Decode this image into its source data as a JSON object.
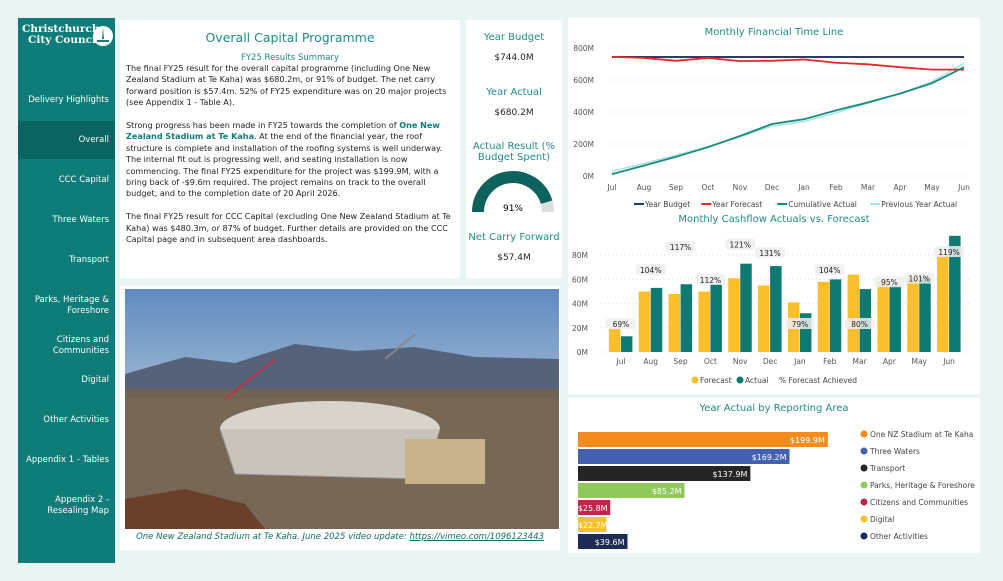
{
  "brand": {
    "line1": "Christchurch",
    "line2": "City Council"
  },
  "nav": [
    {
      "label": "Delivery Highlights"
    },
    {
      "label": "Overall",
      "active": true
    },
    {
      "label": "CCC Capital"
    },
    {
      "label": "Three Waters"
    },
    {
      "label": "Transport"
    },
    {
      "label": "Parks, Heritage & Foreshore"
    },
    {
      "label": "Citizens and Communities"
    },
    {
      "label": "Digital"
    },
    {
      "label": "Other Activities"
    },
    {
      "label": "Appendix 1 - Tables"
    },
    {
      "label": "Appendix 2 - Resealing Map"
    }
  ],
  "main": {
    "title": "Overall Capital Programme",
    "subtitle": "FY25 Results Summary",
    "p1": "The final FY25 result for the overall capital programme (including One New Zealand Stadium at Te Kaha) was $680.2m, or 91% of budget.  The net carry forward position is $57.4m.  52% of FY25 expenditure was on 20 major projects (see Appendix 1 - Table A).",
    "p2_pre": "Strong progress has been made in FY25 towards the completion of ",
    "p2_bold": "One New Zealand Stadium at Te Kaha",
    "p2_post": ".  At the end of the financial year, the roof structure is complete and installation of the roofing systems is well underway.  The internal fit out is progressing well, and seating installation is now commencing.  The final FY25 expenditure for the project was $199.9M, with a bring back of -$9.6m required.  The project remains on track to the overall budget, and to the completion date of 20 April 2026.",
    "p3": "The final FY25 result for CCC Capital (excluding One New Zealand Stadium at Te Kaha) was $480.3m, or 87% of budget.  Further details are provided on the CCC Capital page and in subsequent area dashboards."
  },
  "kpis": {
    "year_budget_label": "Year Budget",
    "year_budget": "$744.0M",
    "year_actual_label": "Year Actual",
    "year_actual": "$680.2M",
    "result_label": "Actual Result (% Budget Spent)",
    "result": "91%",
    "result_fraction": 0.91,
    "carry_label": "Net Carry Forward",
    "carry": "$57.4M"
  },
  "photo": {
    "caption": "One New Zealand Stadium at Te Kaha.  June 2025 video update: ",
    "link": "https://vimeo.com/1096123443"
  },
  "colors": {
    "teal": "#0e7c78",
    "budget": "#2f3a5c",
    "forecast_line": "#e8262b",
    "cumulative": "#1a8a80",
    "previous": "#a8e3dc",
    "bar_forecast": "#fbbf2b",
    "bar_actual": "#0e7a72"
  },
  "chart_data": [
    {
      "type": "line",
      "title": "Monthly Financial Time Line",
      "categories": [
        "Jul",
        "Aug",
        "Sep",
        "Oct",
        "Nov",
        "Dec",
        "Jan",
        "Feb",
        "Mar",
        "Apr",
        "May",
        "Jun"
      ],
      "ylim": [
        0,
        800
      ],
      "yticks": [
        "0M",
        "200M",
        "400M",
        "600M",
        "800M"
      ],
      "grid": true,
      "legend": "bottom",
      "series": [
        {
          "name": "Year Budget",
          "values": [
            744,
            744,
            744,
            744,
            744,
            744,
            744,
            744,
            744,
            744,
            744,
            744
          ]
        },
        {
          "name": "Year Forecast",
          "values": [
            745,
            738,
            720,
            738,
            718,
            720,
            728,
            708,
            698,
            680,
            665,
            665
          ]
        },
        {
          "name": "Cumulative Actual",
          "values": [
            12,
            65,
            120,
            180,
            250,
            325,
            355,
            410,
            460,
            515,
            580,
            680
          ]
        },
        {
          "name": "Previous Year Actual",
          "values": [
            30,
            78,
            130,
            185,
            245,
            312,
            340,
            395,
            455,
            515,
            590,
            705
          ]
        }
      ]
    },
    {
      "type": "bar",
      "title": "Monthly Cashflow Actuals vs. Forecast",
      "categories": [
        "Jul",
        "Aug",
        "Sep",
        "Oct",
        "Nov",
        "Dec",
        "Jan",
        "Feb",
        "Mar",
        "Apr",
        "May",
        "Jun"
      ],
      "ylim": [
        0,
        100
      ],
      "yticks": [
        "0M",
        "20M",
        "40M",
        "60M",
        "80M"
      ],
      "legend": "bottom",
      "legend_extra": "% Forecast Achieved",
      "series": [
        {
          "name": "Forecast",
          "values": [
            19,
            50,
            48,
            50,
            61,
            55,
            41,
            58,
            64,
            58,
            61,
            81
          ]
        },
        {
          "name": "Actual",
          "values": [
            13,
            53,
            56,
            56,
            73,
            71,
            32,
            60,
            52,
            55,
            62,
            96
          ]
        }
      ],
      "labels": [
        "69%",
        "104%",
        "117%",
        "112%",
        "121%",
        "131%",
        "79%",
        "104%",
        "80%",
        "95%",
        "101%",
        "119%"
      ]
    },
    {
      "type": "bar",
      "orientation": "horizontal",
      "title": "Year Actual by Reporting Area",
      "legend": "right",
      "categories": [
        "One NZ Stadium at Te Kaha",
        "Three Waters",
        "Transport",
        "Parks, Heritage & Foreshore",
        "Citizens and Communities",
        "Digital",
        "Other Activities"
      ],
      "values": [
        199.9,
        169.2,
        137.9,
        85.2,
        25.8,
        22.7,
        39.6
      ],
      "labels": [
        "$199.9M",
        "$169.2M",
        "$137.9M",
        "$85.2M",
        "$25.8M",
        "$22.7M",
        "$39.6M"
      ],
      "colors": [
        "#f28c1e",
        "#4460b0",
        "#252525",
        "#8fc95a",
        "#c0254a",
        "#fbbf2b",
        "#1d2b55"
      ]
    }
  ]
}
